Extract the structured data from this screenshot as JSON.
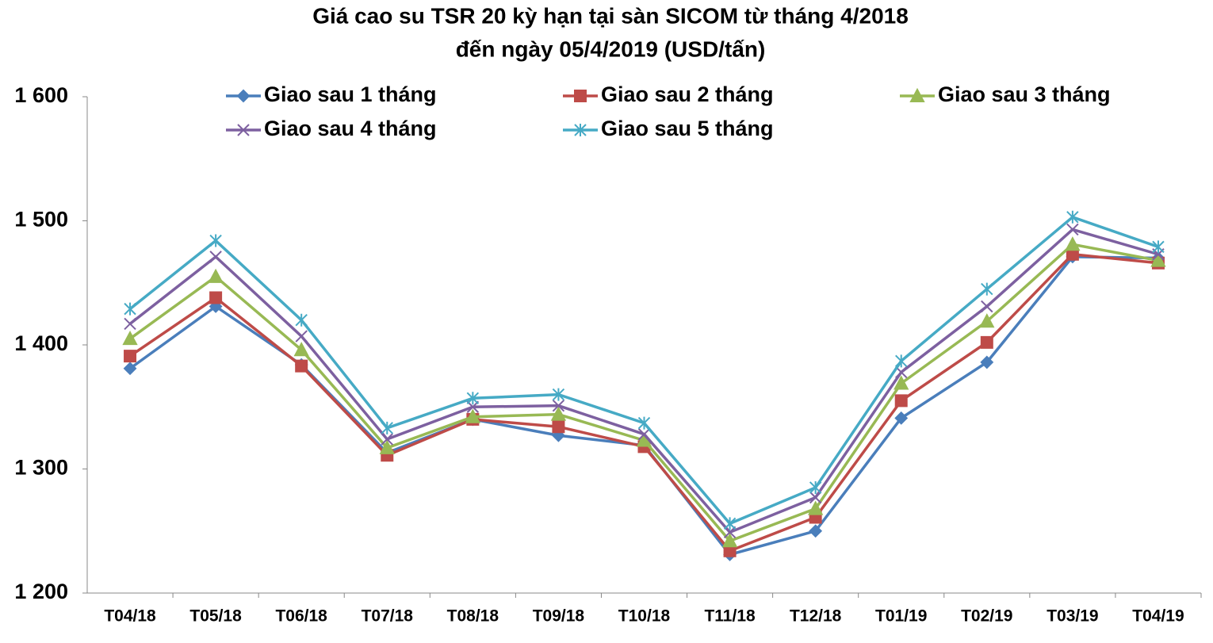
{
  "chart_data": {
    "type": "line",
    "title": "Giá cao su TSR 20 kỳ hạn tại sàn SICOM từ tháng 4/2018",
    "subtitle": "đến ngày 05/4/2019 (USD/tấn)",
    "categories": [
      "T04/18",
      "T05/18",
      "T06/18",
      "T07/18",
      "T08/18",
      "T09/18",
      "T10/18",
      "T11/18",
      "T12/18",
      "T01/19",
      "T02/19",
      "T03/19",
      "T04/19"
    ],
    "series": [
      {
        "name": "Giao sau 1 tháng",
        "color": "#4a7ebb",
        "marker": "diamond",
        "values": [
          1381,
          1431,
          1384,
          1313,
          1340,
          1327,
          1319,
          1231,
          1250,
          1341,
          1386,
          1471,
          1470
        ]
      },
      {
        "name": "Giao sau 2 tháng",
        "color": "#be4b48",
        "marker": "square",
        "values": [
          1391,
          1438,
          1383,
          1311,
          1340,
          1334,
          1318,
          1234,
          1261,
          1355,
          1402,
          1473,
          1466
        ]
      },
      {
        "name": "Giao sau 3 tháng",
        "color": "#98b954",
        "marker": "triangle",
        "values": [
          1405,
          1455,
          1396,
          1317,
          1342,
          1344,
          1323,
          1242,
          1268,
          1369,
          1419,
          1481,
          1468
        ]
      },
      {
        "name": "Giao sau 4 tháng",
        "color": "#7d60a0",
        "marker": "x",
        "values": [
          1417,
          1471,
          1407,
          1324,
          1350,
          1351,
          1328,
          1249,
          1277,
          1378,
          1431,
          1493,
          1473
        ]
      },
      {
        "name": "Giao sau 5 tháng",
        "color": "#46aac5",
        "marker": "star",
        "values": [
          1429,
          1484,
          1420,
          1333,
          1357,
          1360,
          1337,
          1256,
          1285,
          1387,
          1445,
          1503,
          1479
        ]
      }
    ],
    "ylim": [
      1200,
      1600
    ],
    "yticks": [
      {
        "value": 1200,
        "label": "1 200"
      },
      {
        "value": 1300,
        "label": "1 300"
      },
      {
        "value": 1400,
        "label": "1 400"
      },
      {
        "value": 1500,
        "label": "1 500"
      },
      {
        "value": 1600,
        "label": "1 600"
      }
    ],
    "grid": false
  }
}
